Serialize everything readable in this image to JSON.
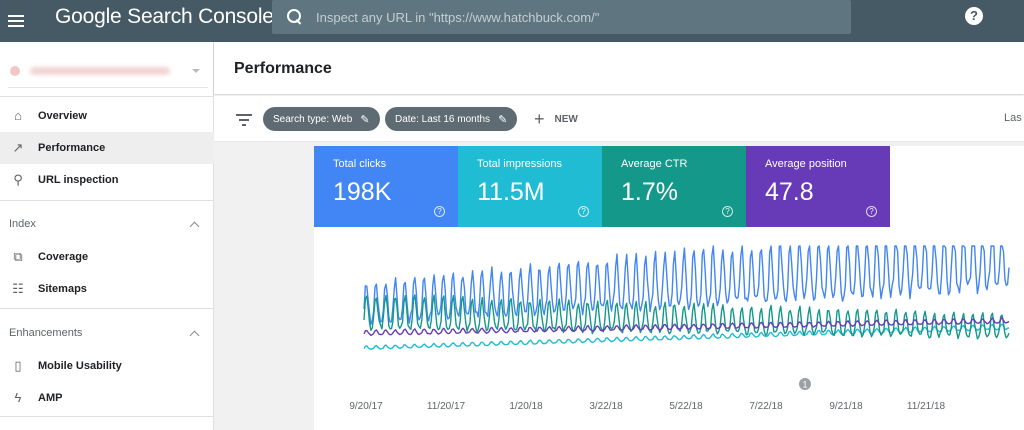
{
  "header": {
    "brand": "Google Search Console",
    "search_placeholder": "Inspect any URL in \"https://www.hatchbuck.com/\"",
    "help_glyph": "?"
  },
  "sidebar": {
    "items": [
      {
        "label": "Overview",
        "icon": "home-icon",
        "glyph": "⌂"
      },
      {
        "label": "Performance",
        "icon": "trending-up-icon",
        "glyph": "↗"
      },
      {
        "label": "URL inspection",
        "icon": "search-icon",
        "glyph": "⚲"
      }
    ],
    "sections": [
      {
        "label": "Index",
        "items": [
          {
            "label": "Coverage",
            "icon": "coverage-icon",
            "glyph": "⧉"
          },
          {
            "label": "Sitemaps",
            "icon": "sitemap-icon",
            "glyph": "☷"
          }
        ]
      },
      {
        "label": "Enhancements",
        "items": [
          {
            "label": "Mobile Usability",
            "icon": "smartphone-icon",
            "glyph": "▯"
          },
          {
            "label": "AMP",
            "icon": "bolt-icon",
            "glyph": "ϟ"
          }
        ]
      }
    ]
  },
  "page": {
    "title": "Performance",
    "filters": {
      "search_type": "Search type: Web",
      "date": "Date: Last 16 months",
      "new_label": "NEW",
      "last_label": "Las"
    }
  },
  "metrics": [
    {
      "label": "Total clicks",
      "value": "198K",
      "color": "#4285f4"
    },
    {
      "label": "Total impressions",
      "value": "11.5M",
      "color": "#1fbcd3"
    },
    {
      "label": "Average CTR",
      "value": "1.7%",
      "color": "#13988a"
    },
    {
      "label": "Average position",
      "value": "47.8",
      "color": "#673ab7"
    }
  ],
  "chart_data": {
    "type": "line",
    "x": [
      "9/20/17",
      "11/20/17",
      "1/20/18",
      "3/22/18",
      "5/22/18",
      "7/22/18",
      "9/21/18",
      "11/21/18"
    ],
    "annotation": "1",
    "series": [
      {
        "name": "Total clicks",
        "color": "#4285f4",
        "level_start": 0.46,
        "level_end": 0.8,
        "amplitude_start": 0.24,
        "amplitude_end": 0.42
      },
      {
        "name": "Total impressions",
        "color": "#1fbcd3",
        "level_start": 0.16,
        "level_end": 0.33,
        "amplitude_start": 0.02,
        "amplitude_end": 0.03
      },
      {
        "name": "Average CTR",
        "color": "#13988a",
        "level_start": 0.4,
        "level_end": 0.3,
        "amplitude_start": 0.2,
        "amplitude_end": 0.14
      },
      {
        "name": "Average position",
        "color": "#673ab7",
        "level_start": 0.28,
        "level_end": 0.38,
        "amplitude_start": 0.03,
        "amplitude_end": 0.03
      }
    ]
  }
}
